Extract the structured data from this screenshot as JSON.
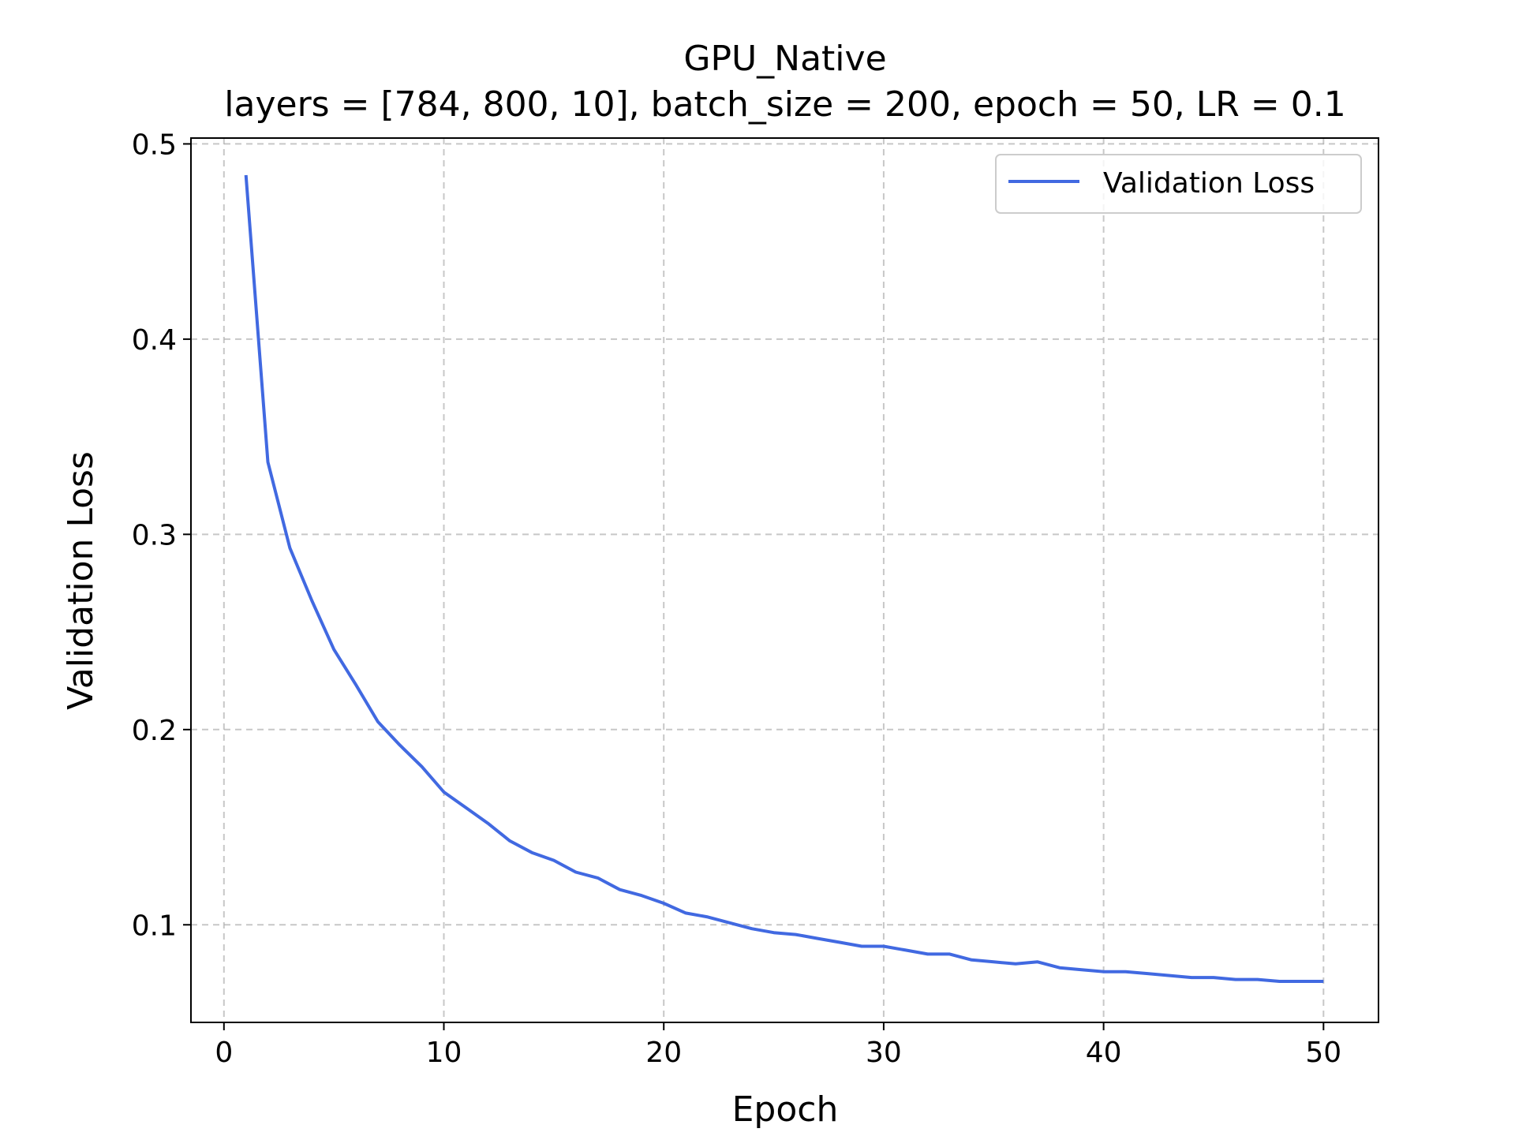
{
  "chart_data": {
    "type": "line",
    "title": "GPU_Native",
    "subtitle": "layers = [784, 800, 10], batch_size = 200, epoch = 50, LR = 0.1",
    "xlabel": "Epoch",
    "ylabel": "Validation Loss",
    "xlim": [
      -1.5,
      52.5
    ],
    "ylim": [
      0.05,
      0.503
    ],
    "xticks": [
      0,
      10,
      20,
      30,
      40,
      50
    ],
    "xtick_labels": [
      "0",
      "10",
      "20",
      "30",
      "40",
      "50"
    ],
    "yticks": [
      0.1,
      0.2,
      0.3,
      0.4,
      0.5
    ],
    "ytick_labels": [
      "0.1",
      "0.2",
      "0.3",
      "0.4",
      "0.5"
    ],
    "grid": true,
    "legend_position": "top-right",
    "series": [
      {
        "name": "Validation Loss",
        "color": "#4169e1",
        "x": [
          1,
          2,
          3,
          4,
          5,
          6,
          7,
          8,
          9,
          10,
          11,
          12,
          13,
          14,
          15,
          16,
          17,
          18,
          19,
          20,
          21,
          22,
          23,
          24,
          25,
          26,
          27,
          28,
          29,
          30,
          31,
          32,
          33,
          34,
          35,
          36,
          37,
          38,
          39,
          40,
          41,
          42,
          43,
          44,
          45,
          46,
          47,
          48,
          49,
          50
        ],
        "y": [
          0.484,
          0.337,
          0.293,
          0.266,
          0.241,
          0.223,
          0.204,
          0.192,
          0.181,
          0.168,
          0.16,
          0.152,
          0.143,
          0.137,
          0.133,
          0.127,
          0.124,
          0.118,
          0.115,
          0.111,
          0.106,
          0.104,
          0.101,
          0.098,
          0.096,
          0.095,
          0.093,
          0.091,
          0.089,
          0.089,
          0.087,
          0.085,
          0.085,
          0.082,
          0.081,
          0.08,
          0.081,
          0.078,
          0.077,
          0.076,
          0.076,
          0.075,
          0.074,
          0.073,
          0.073,
          0.072,
          0.072,
          0.071,
          0.071,
          0.071
        ]
      }
    ]
  }
}
